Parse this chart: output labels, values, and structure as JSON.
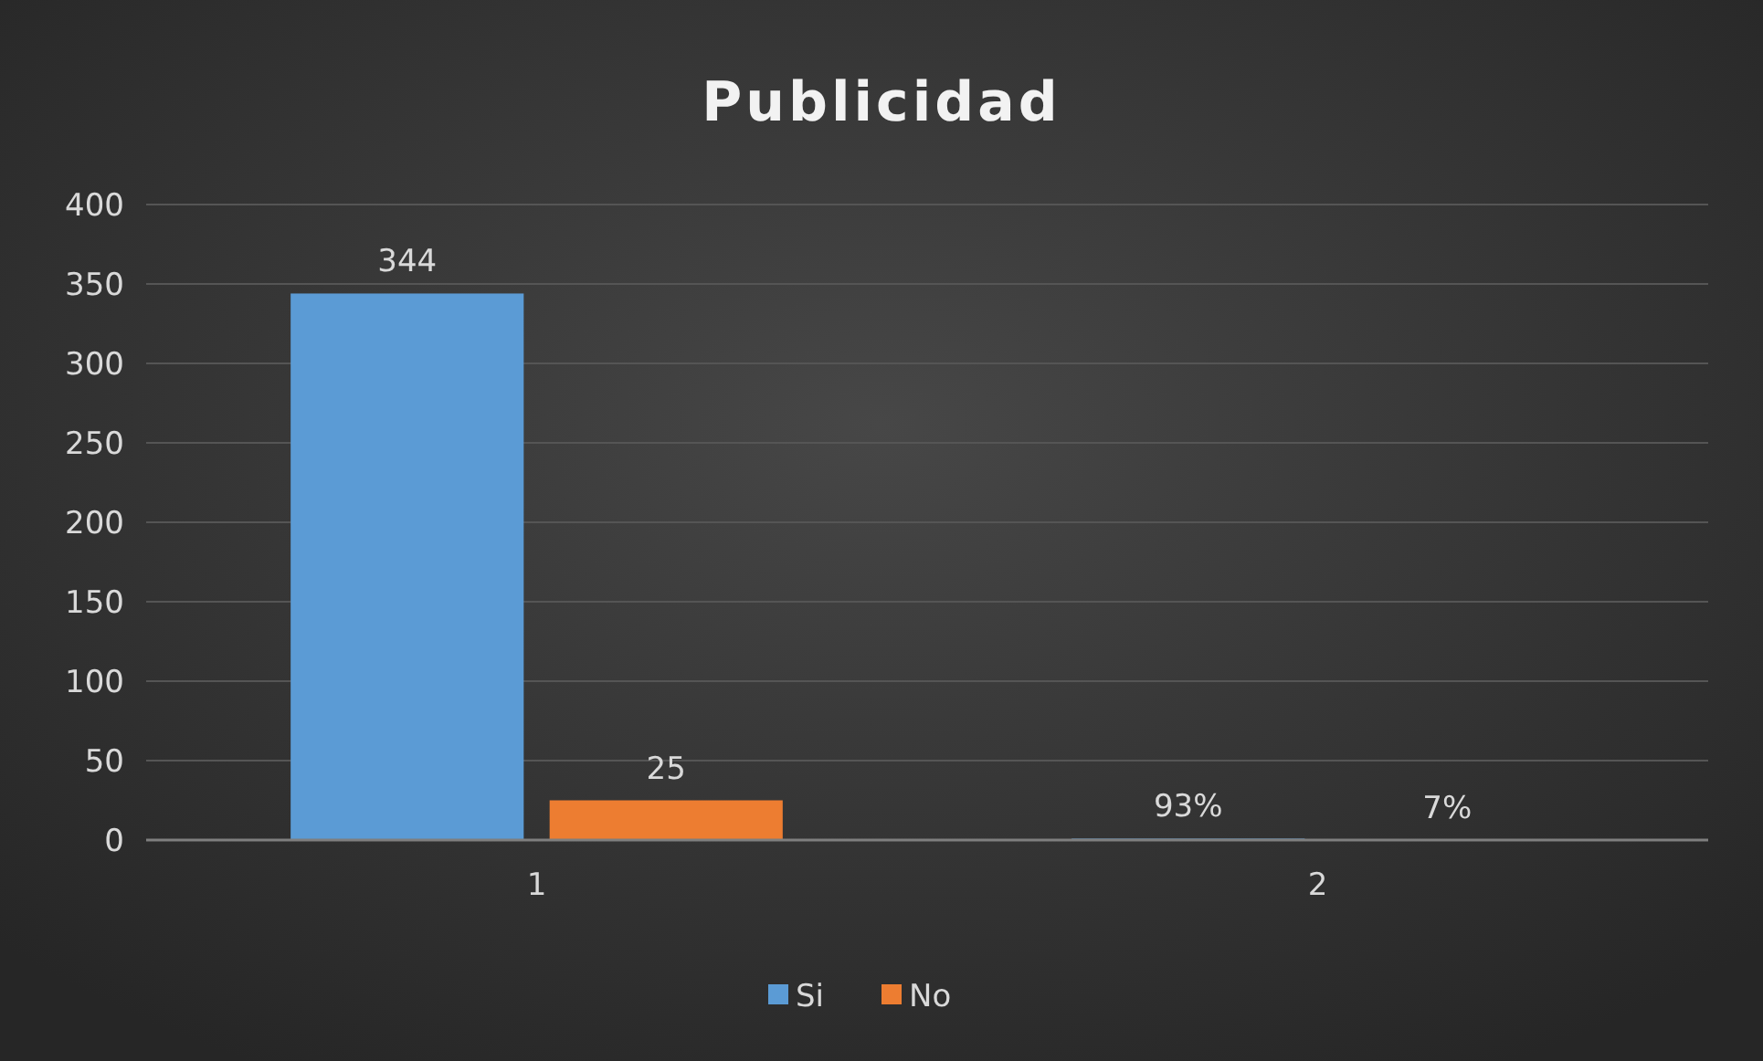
{
  "chart_data": {
    "type": "bar",
    "title": "Publicidad",
    "categories": [
      "1",
      "2"
    ],
    "series": [
      {
        "name": "Si",
        "color": "#5b9bd5",
        "values": [
          344,
          0.93
        ],
        "value_labels": [
          "344",
          "93%"
        ]
      },
      {
        "name": "No",
        "color": "#ed7d31",
        "values": [
          25,
          0.07
        ],
        "value_labels": [
          "25",
          "7%"
        ]
      }
    ],
    "ylim": [
      0,
      400
    ],
    "yticks": [
      0,
      50,
      100,
      150,
      200,
      250,
      300,
      350,
      400
    ],
    "grid": "y",
    "legend": "bottom"
  }
}
